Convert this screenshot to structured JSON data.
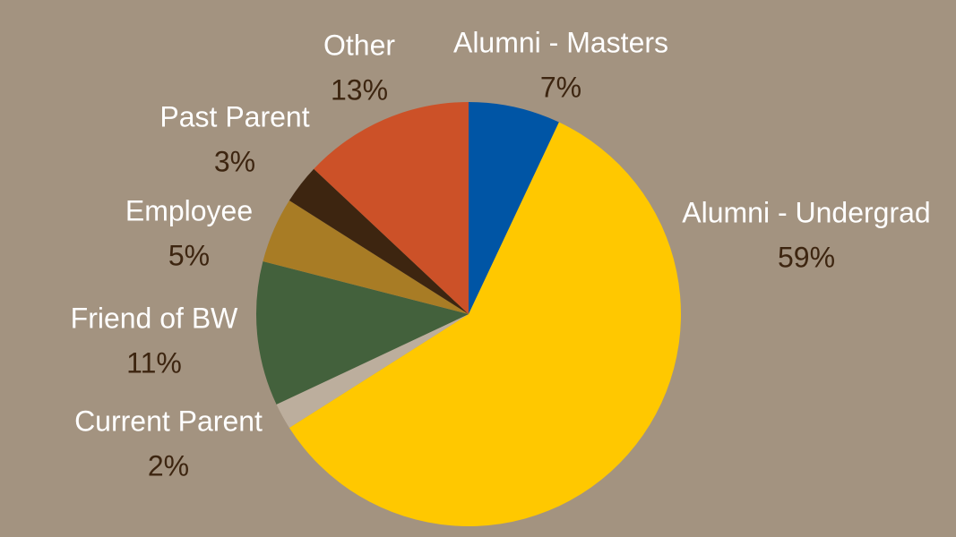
{
  "chart_data": {
    "type": "pie",
    "categories": [
      "Alumni - Masters",
      "Alumni - Undergrad",
      "Current Parent",
      "Friend of BW",
      "Employee",
      "Past Parent",
      "Other"
    ],
    "values": [
      7,
      59,
      2,
      11,
      5,
      3,
      13
    ],
    "value_labels": [
      "7%",
      "59%",
      "2%",
      "11%",
      "5%",
      "3%",
      "13%"
    ],
    "colors": [
      "#0055a5",
      "#ffc800",
      "#bcae9d",
      "#43613c",
      "#a87c25",
      "#3d2510",
      "#cc5128"
    ]
  }
}
